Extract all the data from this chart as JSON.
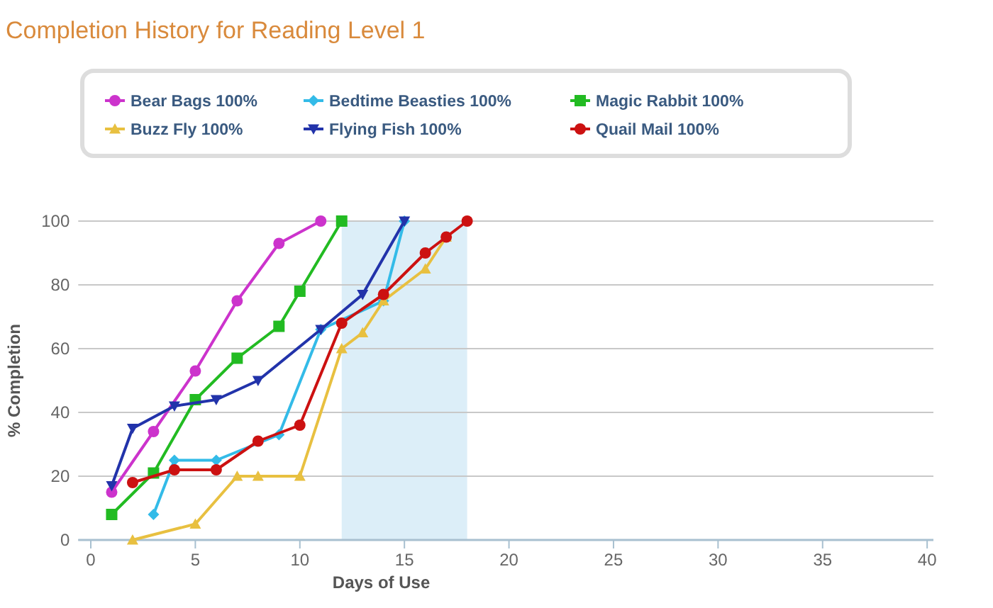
{
  "chart_data": {
    "type": "line",
    "title": "Completion History for Reading Level 1",
    "xlabel": "Days of Use",
    "ylabel": "% Completion",
    "xlim": [
      -0.6,
      40.3
    ],
    "xticks": [
      0,
      5,
      10,
      15,
      20,
      25,
      30,
      35,
      40
    ],
    "ylim": [
      0,
      100
    ],
    "yticks": [
      0,
      20,
      40,
      60,
      80,
      100
    ],
    "grid": "y",
    "legend": "top",
    "line_style": "solid",
    "bands": [
      {
        "axis": "x",
        "from": 12,
        "to": 18,
        "color": "#dceef8"
      }
    ],
    "series": [
      {
        "name": "Bear Bags 100%",
        "color": "#cc33cc",
        "marker": "circle",
        "x": [
          1,
          3,
          5,
          7,
          9,
          11
        ],
        "values": [
          15,
          34,
          53,
          75,
          93,
          100
        ]
      },
      {
        "name": "Bedtime Beasties 100%",
        "color": "#33bbe8",
        "marker": "diamond",
        "x": [
          3,
          4,
          6,
          9,
          11,
          14,
          15
        ],
        "values": [
          8,
          25,
          25,
          33,
          66,
          75,
          100
        ]
      },
      {
        "name": "Magic Rabbit 100%",
        "color": "#22bb22",
        "marker": "square",
        "x": [
          1,
          3,
          5,
          7,
          9,
          10,
          12
        ],
        "values": [
          8,
          21,
          44,
          57,
          67,
          78,
          100
        ]
      },
      {
        "name": "Buzz Fly 100%",
        "color": "#e8c040",
        "marker": "triangle",
        "x": [
          2,
          5,
          7,
          8,
          10,
          12,
          13,
          14,
          16,
          17
        ],
        "values": [
          0,
          5,
          20,
          20,
          20,
          60,
          65,
          75,
          85,
          95
        ]
      },
      {
        "name": "Flying Fish 100%",
        "color": "#2233aa",
        "marker": "triangle-down",
        "x": [
          1,
          2,
          4,
          6,
          8,
          11,
          13,
          15
        ],
        "values": [
          17,
          35,
          42,
          44,
          50,
          66,
          77,
          100
        ]
      },
      {
        "name": "Quail Mail 100%",
        "color": "#cc1111",
        "marker": "circle",
        "x": [
          2,
          4,
          6,
          8,
          10,
          12,
          14,
          16,
          17,
          18
        ],
        "values": [
          18,
          22,
          22,
          31,
          36,
          68,
          77,
          90,
          95,
          100
        ]
      }
    ]
  }
}
